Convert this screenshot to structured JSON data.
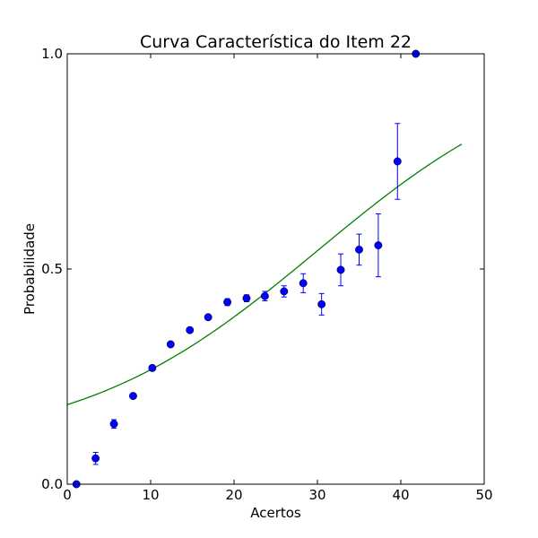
{
  "chart_data": {
    "type": "scatter",
    "title": "Curva Característica do Item 22",
    "xlabel": "Acertos",
    "ylabel": "Probabilidade",
    "xlim": [
      0,
      50
    ],
    "ylim": [
      0,
      1
    ],
    "x_ticks": [
      0,
      10,
      20,
      30,
      40,
      50
    ],
    "x_tick_labels": [
      "0",
      "10",
      "20",
      "30",
      "40",
      "50"
    ],
    "y_ticks": [
      0,
      0.5,
      1
    ],
    "y_tick_labels": [
      "0.0",
      "0.5",
      "1.0"
    ],
    "grid": false,
    "colors": {
      "points": "#0000ff",
      "curve": "#008000"
    },
    "series": [
      {
        "kind": "points_with_error_bars",
        "x": [
          1.1,
          3.4,
          5.6,
          7.9,
          10.2,
          12.4,
          14.7,
          16.9,
          19.2,
          21.5,
          23.7,
          26.0,
          28.3,
          30.5,
          32.8,
          35.0,
          37.3,
          39.6,
          41.8
        ],
        "y": [
          0.0,
          0.06,
          0.14,
          0.205,
          0.27,
          0.325,
          0.358,
          0.388,
          0.423,
          0.432,
          0.437,
          0.448,
          0.467,
          0.418,
          0.498,
          0.545,
          0.555,
          0.75,
          1.0
        ],
        "err": [
          0.0,
          0.014,
          0.01,
          0.006,
          0.006,
          0.005,
          0.005,
          0.005,
          0.008,
          0.008,
          0.011,
          0.013,
          0.022,
          0.025,
          0.037,
          0.036,
          0.073,
          0.088,
          0.0
        ]
      },
      {
        "kind": "fitted_curve",
        "x_range": [
          0,
          47.3
        ],
        "logistic": {
          "lower": 0.085,
          "slope": 0.07,
          "midpoint": 30.0
        }
      }
    ]
  }
}
